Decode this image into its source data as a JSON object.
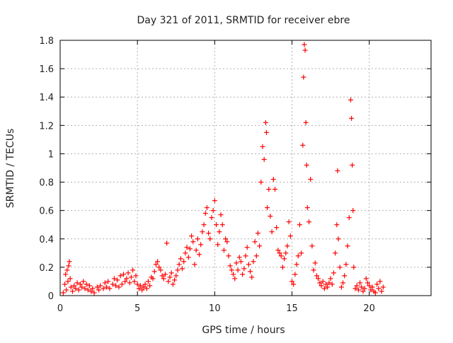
{
  "chart_data": {
    "type": "scatter",
    "title": "Day 321 of 2011, SRMTID for receiver ebre",
    "xlabel": "GPS time / hours",
    "ylabel": "SRMTID / TECUs",
    "xlim": [
      0,
      24
    ],
    "ylim": [
      0,
      1.8
    ],
    "xticks": [
      0,
      5,
      10,
      15,
      20
    ],
    "xtick_labels": [
      "0",
      "5",
      "10",
      "15",
      "20"
    ],
    "yticks": [
      0,
      0.2,
      0.4,
      0.6,
      0.8,
      1,
      1.2,
      1.4,
      1.6,
      1.8
    ],
    "ytick_labels": [
      "0",
      "0.2",
      "0.4",
      "0.6",
      "0.8",
      "1",
      "1.2",
      "1.4",
      "1.6",
      "1.8"
    ],
    "grid": true,
    "marker": "+",
    "series": [
      {
        "name": "SRMTID",
        "color": "#ff0000",
        "points": [
          [
            0.2,
            0.02
          ],
          [
            0.3,
            0.08
          ],
          [
            0.35,
            0.15
          ],
          [
            0.4,
            0.04
          ],
          [
            0.45,
            0.18
          ],
          [
            0.5,
            0.1
          ],
          [
            0.55,
            0.21
          ],
          [
            0.6,
            0.24
          ],
          [
            0.65,
            0.12
          ],
          [
            0.7,
            0.06
          ],
          [
            0.8,
            0.03
          ],
          [
            0.9,
            0.07
          ],
          [
            1.0,
            0.05
          ],
          [
            1.1,
            0.09
          ],
          [
            1.2,
            0.04
          ],
          [
            1.3,
            0.08
          ],
          [
            1.4,
            0.06
          ],
          [
            1.5,
            0.1
          ],
          [
            1.6,
            0.05
          ],
          [
            1.7,
            0.08
          ],
          [
            1.8,
            0.04
          ],
          [
            1.9,
            0.07
          ],
          [
            2.0,
            0.03
          ],
          [
            2.1,
            0.05
          ],
          [
            2.2,
            0.02
          ],
          [
            2.4,
            0.06
          ],
          [
            2.5,
            0.04
          ],
          [
            2.6,
            0.07
          ],
          [
            2.8,
            0.05
          ],
          [
            2.9,
            0.09
          ],
          [
            3.0,
            0.06
          ],
          [
            3.1,
            0.1
          ],
          [
            3.2,
            0.05
          ],
          [
            3.4,
            0.08
          ],
          [
            3.5,
            0.12
          ],
          [
            3.6,
            0.07
          ],
          [
            3.7,
            0.11
          ],
          [
            3.8,
            0.06
          ],
          [
            3.9,
            0.14
          ],
          [
            4.0,
            0.08
          ],
          [
            4.1,
            0.15
          ],
          [
            4.2,
            0.1
          ],
          [
            4.3,
            0.12
          ],
          [
            4.4,
            0.16
          ],
          [
            4.5,
            0.09
          ],
          [
            4.6,
            0.13
          ],
          [
            4.7,
            0.18
          ],
          [
            4.8,
            0.1
          ],
          [
            4.9,
            0.14
          ],
          [
            5.0,
            0.08
          ],
          [
            5.1,
            0.05
          ],
          [
            5.2,
            0.07
          ],
          [
            5.3,
            0.04
          ],
          [
            5.4,
            0.06
          ],
          [
            5.5,
            0.08
          ],
          [
            5.6,
            0.05
          ],
          [
            5.7,
            0.1
          ],
          [
            5.8,
            0.07
          ],
          [
            5.9,
            0.13
          ],
          [
            6.0,
            0.12
          ],
          [
            6.1,
            0.17
          ],
          [
            6.2,
            0.22
          ],
          [
            6.3,
            0.24
          ],
          [
            6.4,
            0.2
          ],
          [
            6.5,
            0.18
          ],
          [
            6.6,
            0.14
          ],
          [
            6.7,
            0.12
          ],
          [
            6.8,
            0.15
          ],
          [
            6.9,
            0.37
          ],
          [
            7.0,
            0.1
          ],
          [
            7.1,
            0.13
          ],
          [
            7.2,
            0.16
          ],
          [
            7.3,
            0.08
          ],
          [
            7.4,
            0.11
          ],
          [
            7.5,
            0.14
          ],
          [
            7.6,
            0.18
          ],
          [
            7.7,
            0.22
          ],
          [
            7.8,
            0.26
          ],
          [
            7.9,
            0.19
          ],
          [
            8.0,
            0.24
          ],
          [
            8.1,
            0.3
          ],
          [
            8.2,
            0.34
          ],
          [
            8.3,
            0.27
          ],
          [
            8.4,
            0.33
          ],
          [
            8.5,
            0.42
          ],
          [
            8.6,
            0.38
          ],
          [
            8.7,
            0.22
          ],
          [
            8.8,
            0.32
          ],
          [
            8.9,
            0.4
          ],
          [
            9.0,
            0.29
          ],
          [
            9.1,
            0.36
          ],
          [
            9.2,
            0.45
          ],
          [
            9.3,
            0.5
          ],
          [
            9.4,
            0.58
          ],
          [
            9.5,
            0.62
          ],
          [
            9.6,
            0.44
          ],
          [
            9.7,
            0.4
          ],
          [
            9.8,
            0.55
          ],
          [
            9.9,
            0.6
          ],
          [
            10.0,
            0.67
          ],
          [
            10.1,
            0.5
          ],
          [
            10.2,
            0.36
          ],
          [
            10.3,
            0.45
          ],
          [
            10.4,
            0.57
          ],
          [
            10.5,
            0.5
          ],
          [
            10.6,
            0.32
          ],
          [
            10.7,
            0.4
          ],
          [
            10.8,
            0.38
          ],
          [
            10.9,
            0.28
          ],
          [
            11.0,
            0.21
          ],
          [
            11.1,
            0.18
          ],
          [
            11.2,
            0.15
          ],
          [
            11.3,
            0.12
          ],
          [
            11.4,
            0.23
          ],
          [
            11.5,
            0.18
          ],
          [
            11.6,
            0.27
          ],
          [
            11.7,
            0.24
          ],
          [
            11.8,
            0.15
          ],
          [
            11.9,
            0.19
          ],
          [
            12.0,
            0.28
          ],
          [
            12.1,
            0.34
          ],
          [
            12.2,
            0.22
          ],
          [
            12.3,
            0.17
          ],
          [
            12.4,
            0.13
          ],
          [
            12.5,
            0.24
          ],
          [
            12.6,
            0.38
          ],
          [
            12.7,
            0.28
          ],
          [
            12.8,
            0.44
          ],
          [
            12.9,
            0.35
          ],
          [
            13.0,
            0.8
          ],
          [
            13.1,
            1.05
          ],
          [
            13.2,
            0.96
          ],
          [
            13.3,
            1.22
          ],
          [
            13.35,
            1.15
          ],
          [
            13.4,
            0.62
          ],
          [
            13.5,
            0.75
          ],
          [
            13.6,
            0.56
          ],
          [
            13.7,
            0.45
          ],
          [
            13.8,
            0.82
          ],
          [
            13.9,
            0.75
          ],
          [
            14.0,
            0.48
          ],
          [
            14.1,
            0.32
          ],
          [
            14.2,
            0.3
          ],
          [
            14.3,
            0.28
          ],
          [
            14.4,
            0.2
          ],
          [
            14.5,
            0.26
          ],
          [
            14.6,
            0.3
          ],
          [
            14.7,
            0.35
          ],
          [
            14.8,
            0.52
          ],
          [
            14.9,
            0.42
          ],
          [
            15.0,
            0.1
          ],
          [
            15.1,
            0.08
          ],
          [
            15.2,
            0.15
          ],
          [
            15.3,
            0.22
          ],
          [
            15.4,
            0.28
          ],
          [
            15.5,
            0.5
          ],
          [
            15.6,
            0.3
          ],
          [
            15.7,
            1.06
          ],
          [
            15.75,
            1.54
          ],
          [
            15.8,
            1.77
          ],
          [
            15.85,
            1.73
          ],
          [
            15.9,
            1.22
          ],
          [
            15.95,
            0.92
          ],
          [
            16.0,
            0.62
          ],
          [
            16.1,
            0.52
          ],
          [
            16.2,
            0.82
          ],
          [
            16.3,
            0.35
          ],
          [
            16.4,
            0.18
          ],
          [
            16.5,
            0.23
          ],
          [
            16.6,
            0.14
          ],
          [
            16.7,
            0.12
          ],
          [
            16.8,
            0.09
          ],
          [
            16.9,
            0.07
          ],
          [
            17.0,
            0.1
          ],
          [
            17.1,
            0.05
          ],
          [
            17.2,
            0.08
          ],
          [
            17.3,
            0.06
          ],
          [
            17.4,
            0.09
          ],
          [
            17.5,
            0.12
          ],
          [
            17.6,
            0.08
          ],
          [
            17.7,
            0.16
          ],
          [
            17.8,
            0.3
          ],
          [
            17.9,
            0.5
          ],
          [
            17.95,
            0.88
          ],
          [
            18.0,
            0.4
          ],
          [
            18.1,
            0.2
          ],
          [
            18.2,
            0.06
          ],
          [
            18.3,
            0.09
          ],
          [
            18.4,
            0.14
          ],
          [
            18.5,
            0.22
          ],
          [
            18.6,
            0.35
          ],
          [
            18.7,
            0.55
          ],
          [
            18.8,
            1.38
          ],
          [
            18.85,
            1.25
          ],
          [
            18.9,
            0.92
          ],
          [
            18.95,
            0.6
          ],
          [
            19.0,
            0.2
          ],
          [
            19.1,
            0.05
          ],
          [
            19.2,
            0.07
          ],
          [
            19.3,
            0.04
          ],
          [
            19.4,
            0.09
          ],
          [
            19.5,
            0.06
          ],
          [
            19.6,
            0.03
          ],
          [
            19.7,
            0.05
          ],
          [
            19.8,
            0.12
          ],
          [
            19.9,
            0.09
          ],
          [
            20.0,
            0.07
          ],
          [
            20.1,
            0.04
          ],
          [
            20.2,
            0.06
          ],
          [
            20.3,
            0.03
          ],
          [
            20.4,
            0.02
          ],
          [
            20.5,
            0.08
          ],
          [
            20.6,
            0.05
          ],
          [
            20.7,
            0.1
          ],
          [
            20.8,
            0.03
          ],
          [
            20.9,
            0.06
          ]
        ]
      }
    ]
  }
}
